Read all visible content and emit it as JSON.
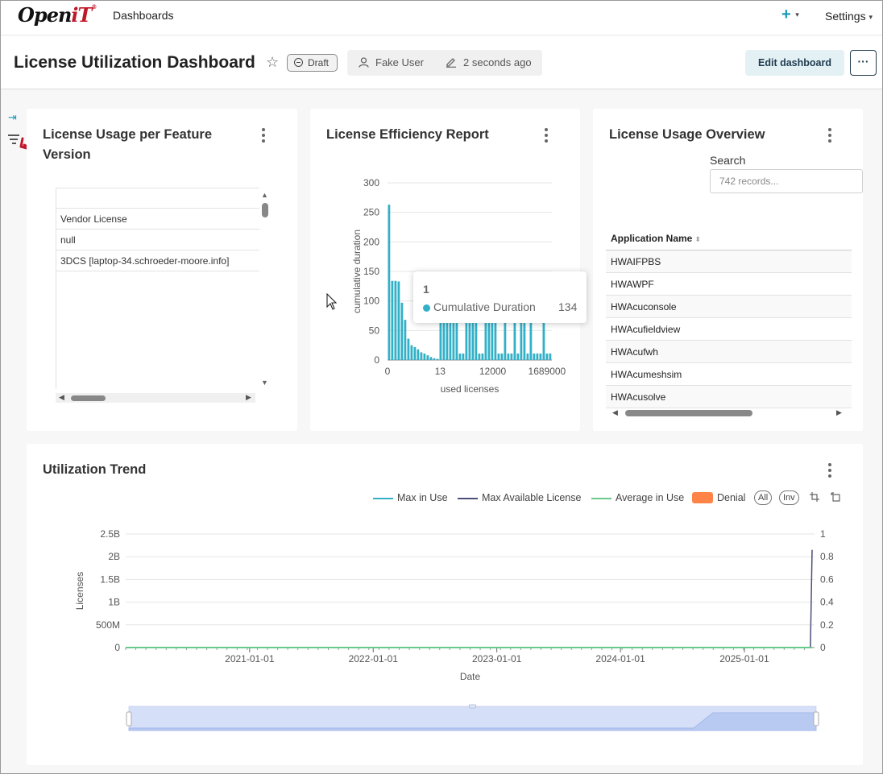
{
  "nav": {
    "logo_main": "Open",
    "logo_accent": "iT",
    "logo_mark": "®",
    "dashboards": "Dashboards",
    "plus": "+",
    "settings": "Settings"
  },
  "header": {
    "title": "License Utilization Dashboard",
    "status": "Draft",
    "user": "Fake User",
    "modified": "2 seconds ago",
    "edit_button": "Edit dashboard",
    "more_button": "···"
  },
  "feature_card": {
    "title": "License Usage per Feature Version",
    "rows": [
      "",
      "Vendor License",
      "null",
      "3DCS [laptop-34.schroeder-moore.info]"
    ]
  },
  "efficiency_card": {
    "title": "License Efficiency Report",
    "tooltip": {
      "x": "1",
      "series": "Cumulative Duration",
      "value": "134"
    }
  },
  "overview_card": {
    "title": "License Usage Overview",
    "search_label": "Search",
    "search_placeholder": "742 records...",
    "column": "Application Name",
    "rows": [
      "HWAIFPBS",
      "HWAWPF",
      "HWAcuconsole",
      "HWAcufieldview",
      "HWAcufwh",
      "HWAcumeshsim",
      "HWAcusolve"
    ]
  },
  "trend_card": {
    "title": "Utilization Trend",
    "legend": {
      "max_in_use": "Max in Use",
      "max_available": "Max Available License",
      "average": "Average in Use",
      "denial": "Denial",
      "all": "All",
      "inv": "Inv"
    }
  },
  "colors": {
    "accent": "#1a9bb5",
    "bar": "#32b0c7",
    "max_in_use": "#32b0c7",
    "max_available": "#4b4f7a",
    "average": "#67c98a",
    "denial": "#ff8447",
    "logo_red": "#c0182a"
  },
  "chart_data": [
    {
      "type": "bar",
      "title": "License Efficiency Report",
      "xlabel": "used licenses",
      "ylabel": "cumulative duration",
      "ylim": [
        0,
        300
      ],
      "yticks": [
        0,
        50,
        100,
        150,
        200,
        250,
        300
      ],
      "xtick_labels": [
        "0",
        "13",
        "12000",
        "1689000"
      ],
      "series": [
        {
          "name": "Cumulative Duration",
          "values": [
            263,
            134,
            134,
            133,
            97,
            68,
            36,
            25,
            22,
            18,
            13,
            11,
            8,
            5,
            3,
            2,
            85,
            85,
            85,
            85,
            85,
            85,
            11,
            11,
            85,
            85,
            85,
            85,
            11,
            11,
            85,
            85,
            85,
            85,
            11,
            11,
            85,
            11,
            11,
            85,
            11,
            85,
            85,
            11,
            85,
            11,
            11,
            11,
            85,
            11,
            11
          ]
        }
      ],
      "grid": true
    },
    {
      "type": "line",
      "title": "Utilization Trend",
      "xlabel": "Date",
      "ylabel": "Licenses",
      "x": [
        "2020-01-01",
        "2025-07-15",
        "2025-07-20"
      ],
      "xtick_labels": [
        "2021-01-01",
        "2022-01-01",
        "2023-01-01",
        "2024-01-01",
        "2025-01-01"
      ],
      "ylim": [
        0,
        2500000000
      ],
      "ytick_labels": [
        "0",
        "500M",
        "1B",
        "1.5B",
        "2B",
        "2.5B"
      ],
      "y2lim": [
        0,
        1
      ],
      "y2tick_labels": [
        "0",
        "0.2",
        "0.4",
        "0.6",
        "0.8",
        "1"
      ],
      "series": [
        {
          "name": "Max in Use",
          "values": [
            0,
            0,
            0
          ]
        },
        {
          "name": "Max Available License",
          "values": [
            0,
            0,
            2150000000
          ]
        },
        {
          "name": "Average in Use",
          "values": [
            0,
            0,
            0
          ]
        },
        {
          "name": "Denial",
          "values": [
            0,
            0,
            0
          ]
        }
      ],
      "legend": "top-right",
      "grid": true
    }
  ]
}
